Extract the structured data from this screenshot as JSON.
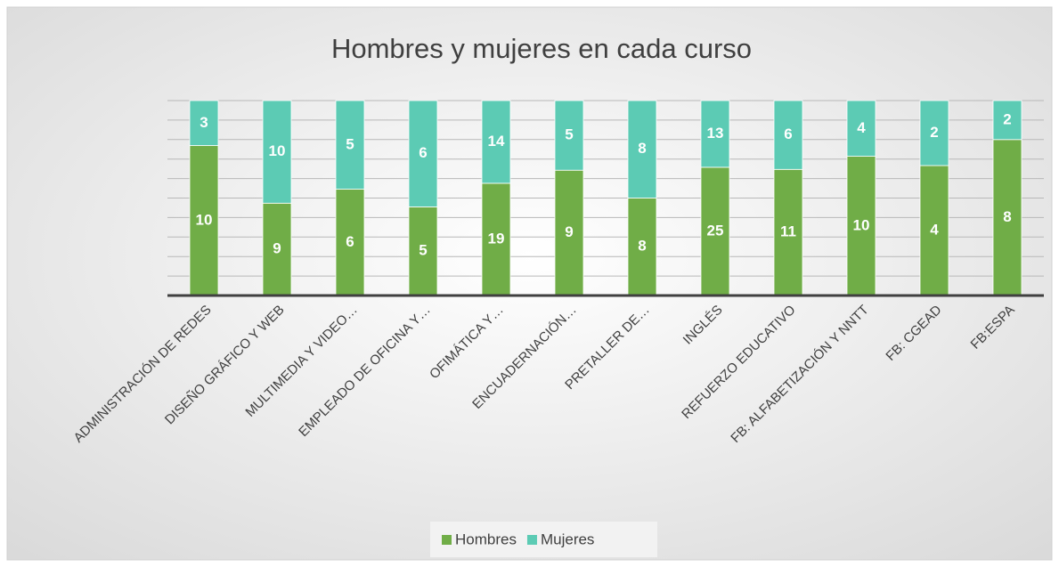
{
  "chart_data": {
    "type": "stacked_bar_100",
    "title": "Hombres y mujeres en cada curso",
    "categories": [
      "ADMINISTRACIÓN DE REDES",
      "DISEÑO GRÁFICO Y WEB",
      "MULTIMEDIA Y VIDEO…",
      "EMPLEADO DE OFICINA Y…",
      "OFIMÁTICA Y…",
      "ENCUADERNACIÓN…",
      "PRETALLER DE…",
      "INGLÉS",
      "REFUERZO EDUCATIVO",
      "FB: ALFABETIZACIÓN Y NNTT",
      "FB: CGEAD",
      "FB:ESPA"
    ],
    "series": [
      {
        "name": "Hombres",
        "color": "#70ad47",
        "values": [
          10,
          9,
          6,
          5,
          19,
          9,
          8,
          25,
          11,
          10,
          4,
          8
        ]
      },
      {
        "name": "Mujeres",
        "color": "#5ccbb4",
        "values": [
          3,
          10,
          5,
          6,
          14,
          5,
          8,
          13,
          6,
          4,
          2,
          2
        ]
      }
    ],
    "ylim": [
      0,
      100
    ],
    "yticks": [
      0,
      10,
      20,
      30,
      40,
      50,
      60,
      70,
      80,
      90,
      100
    ],
    "grid": true,
    "legend": "bottom"
  }
}
